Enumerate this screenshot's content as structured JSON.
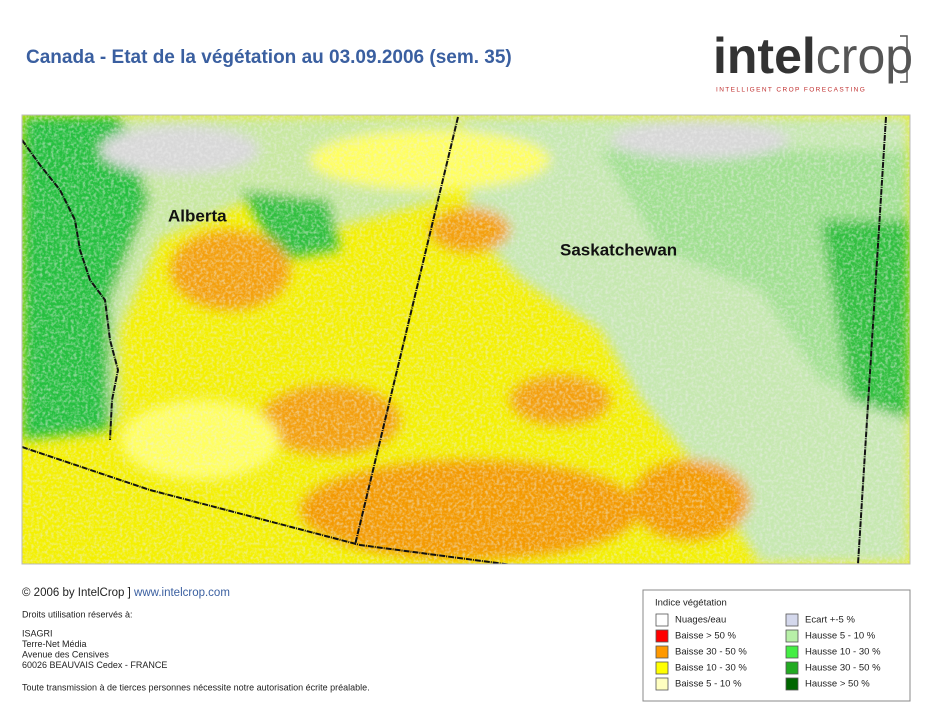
{
  "header": {
    "title": "Canada - Etat de la végétation au 03.09.2006 (sem. 35)"
  },
  "logo": {
    "bold": "intel",
    "light": "crop",
    "tagline": "INTELLIGENT CROP FORECASTING"
  },
  "map": {
    "labels": [
      "Alberta",
      "Saskatchewan"
    ]
  },
  "footer": {
    "copyright": "© 2006 by IntelCrop ]",
    "link": "www.intelcrop.com",
    "rights": "Droits utilisation réservés à:",
    "address": [
      "ISAGRI",
      "Terre-Net Média",
      "Avenue des Censives",
      "60026 BEAUVAIS Cedex - FRANCE"
    ],
    "notice": "Toute transmission à de tierces personnes nécessite notre autorisation écrite préalable."
  },
  "legend": {
    "title": "Indice végétation",
    "items": [
      {
        "label": "Nuages/eau",
        "color": "#ffffff"
      },
      {
        "label": "Baisse > 50 %",
        "color": "#ff0000"
      },
      {
        "label": "Baisse 30 - 50 %",
        "color": "#ff9900"
      },
      {
        "label": "Baisse 10 - 30 %",
        "color": "#ffff00"
      },
      {
        "label": "Baisse 5 - 10 %",
        "color": "#ffffc0"
      },
      {
        "label": "Ecart +-5 %",
        "color": "#d4d8ec"
      },
      {
        "label": "Hausse 5 - 10 %",
        "color": "#b8f0a8"
      },
      {
        "label": "Hausse 10 - 30 %",
        "color": "#44ee44"
      },
      {
        "label": "Hausse 30 - 50 %",
        "color": "#22aa22"
      },
      {
        "label": "Hausse > 50 %",
        "color": "#006600"
      }
    ]
  }
}
